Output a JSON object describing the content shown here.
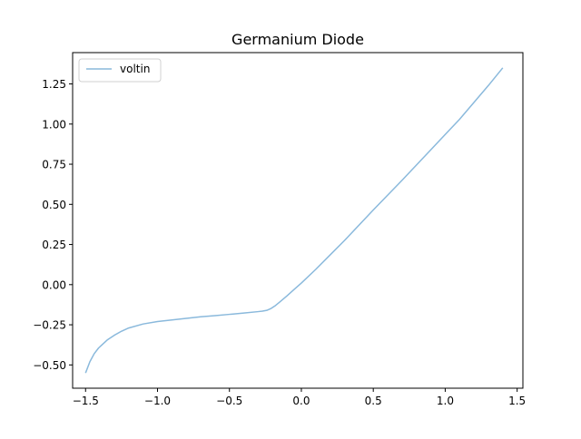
{
  "chart_data": {
    "type": "line",
    "title": "Germanium Diode",
    "xlabel": "",
    "ylabel": "",
    "xlim": [
      -1.59,
      1.54
    ],
    "ylim": [
      -0.645,
      1.445
    ],
    "xticks": [
      -1.5,
      -1.0,
      -0.5,
      0.0,
      0.5,
      1.0,
      1.5
    ],
    "xtick_labels": [
      "−1.5",
      "−1.0",
      "−0.5",
      "0.0",
      "0.5",
      "1.0",
      "1.5"
    ],
    "yticks": [
      -0.5,
      -0.25,
      0.0,
      0.25,
      0.5,
      0.75,
      1.0,
      1.25
    ],
    "ytick_labels": [
      "−0.50",
      "−0.25",
      "0.00",
      "0.25",
      "0.50",
      "0.75",
      "1.00",
      "1.25"
    ],
    "grid": false,
    "legend_position": "top-left",
    "series": [
      {
        "name": "voltin",
        "color": "#8ab9dc",
        "x": [
          -1.5,
          -1.47,
          -1.44,
          -1.41,
          -1.38,
          -1.35,
          -1.3,
          -1.25,
          -1.2,
          -1.1,
          -1.0,
          -0.9,
          -0.8,
          -0.7,
          -0.6,
          -0.5,
          -0.4,
          -0.3,
          -0.27,
          -0.24,
          -0.21,
          -0.18,
          -0.15,
          -0.1,
          -0.05,
          0.0,
          0.1,
          0.2,
          0.3,
          0.5,
          0.7,
          0.9,
          1.0,
          1.1,
          1.2,
          1.3,
          1.4
        ],
        "y": [
          -0.55,
          -0.48,
          -0.43,
          -0.395,
          -0.37,
          -0.345,
          -0.315,
          -0.29,
          -0.27,
          -0.245,
          -0.23,
          -0.22,
          -0.21,
          -0.2,
          -0.193,
          -0.185,
          -0.177,
          -0.168,
          -0.165,
          -0.16,
          -0.148,
          -0.13,
          -0.108,
          -0.07,
          -0.03,
          0.01,
          0.095,
          0.185,
          0.275,
          0.465,
          0.65,
          0.84,
          0.935,
          1.03,
          1.135,
          1.24,
          1.35
        ]
      }
    ]
  }
}
